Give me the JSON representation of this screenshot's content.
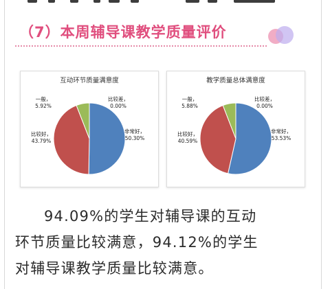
{
  "section": {
    "title": "（7）本周辅导课教学质量评价"
  },
  "colors": {
    "very_good": "#4f81bd",
    "fairly_good": "#c0504d",
    "average": "#9bbb59",
    "poor": "#8064a2",
    "title": "#e04e7e"
  },
  "chart_data": [
    {
      "type": "pie",
      "title": "互动环节质量满意度",
      "slices": [
        {
          "label": "非常好",
          "value": 50.3,
          "value_label": "50.30%",
          "color": "#4f81bd"
        },
        {
          "label": "比较好",
          "value": 43.79,
          "value_label": "43.79%",
          "color": "#c0504d"
        },
        {
          "label": "一般",
          "value": 5.92,
          "value_label": "5.92%",
          "color": "#9bbb59"
        },
        {
          "label": "比较差",
          "value": 0.0,
          "value_label": "0.00%",
          "color": "#8064a2"
        }
      ],
      "legend": "none"
    },
    {
      "type": "pie",
      "title": "教学质量总体满意度",
      "slices": [
        {
          "label": "非常好",
          "value": 53.53,
          "value_label": "53.53%",
          "color": "#4f81bd"
        },
        {
          "label": "比较好",
          "value": 40.59,
          "value_label": "40.59%",
          "color": "#c0504d"
        },
        {
          "label": "一般",
          "value": 5.88,
          "value_label": "5.88%",
          "color": "#9bbb59"
        },
        {
          "label": "比较差",
          "value": 0.0,
          "value_label": "0.00%",
          "color": "#8064a2"
        }
      ],
      "legend": "none"
    }
  ],
  "summary": {
    "line1": "94.09%的学生对辅导课的互动",
    "line2": "环节质量比较满意，94.12%的学生",
    "line3": "对辅导课教学质量比较满意。"
  }
}
